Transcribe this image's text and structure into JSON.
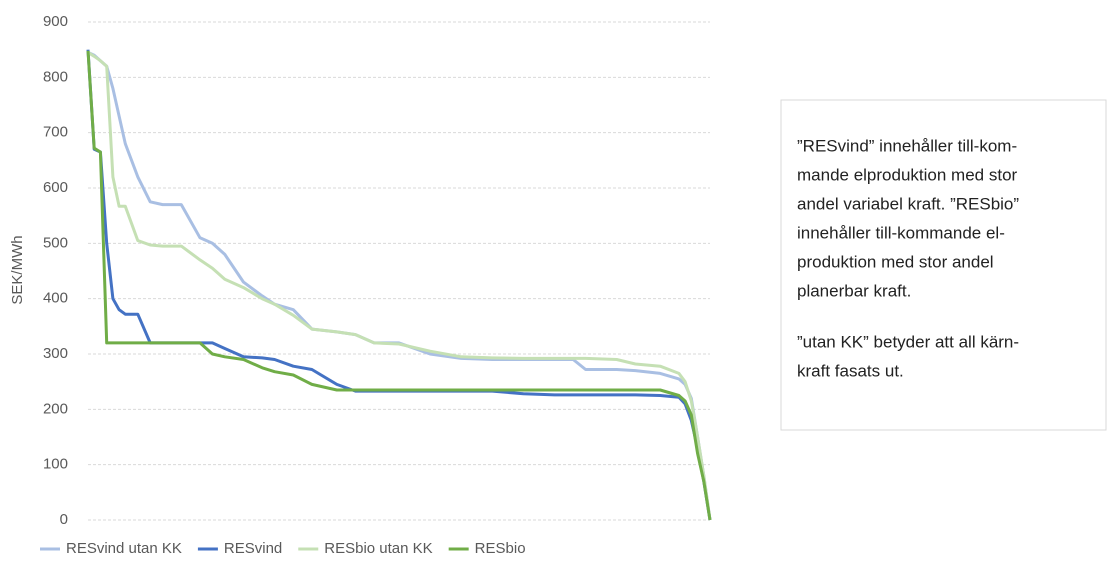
{
  "chart_data": {
    "type": "line",
    "y_label": "SEK/MWh",
    "x": [
      0,
      1,
      2,
      3,
      4,
      5,
      6,
      8,
      10,
      12,
      15,
      18,
      20,
      22,
      25,
      28,
      30,
      33,
      36,
      40,
      43,
      46,
      50,
      55,
      60,
      65,
      70,
      75,
      78,
      80,
      85,
      88,
      92,
      95,
      96,
      97,
      98,
      99,
      100
    ],
    "xlim": [
      0,
      100
    ],
    "ylim": [
      0,
      900
    ],
    "yticks": [
      0,
      100,
      200,
      300,
      400,
      500,
      600,
      700,
      800,
      900
    ],
    "grid": true,
    "legend": "bottom",
    "series": [
      {
        "name": "RESvind utan KK",
        "color": "#a9bfe3",
        "values": [
          845,
          840,
          830,
          820,
          780,
          730,
          680,
          620,
          575,
          570,
          570,
          510,
          500,
          480,
          430,
          405,
          390,
          380,
          345,
          340,
          335,
          320,
          320,
          300,
          292,
          290,
          290,
          290,
          290,
          272,
          272,
          270,
          265,
          255,
          245,
          220,
          150,
          80,
          0
        ]
      },
      {
        "name": "RESvind",
        "color": "#4472c4",
        "values": [
          850,
          670,
          665,
          500,
          400,
          380,
          372,
          372,
          320,
          320,
          320,
          320,
          320,
          310,
          295,
          293,
          290,
          278,
          272,
          245,
          233,
          233,
          233,
          233,
          233,
          233,
          228,
          226,
          226,
          226,
          226,
          226,
          225,
          222,
          210,
          180,
          130,
          70,
          0
        ]
      },
      {
        "name": "RESbio utan KK",
        "color": "#c5e0b4",
        "values": [
          845,
          838,
          830,
          820,
          620,
          567,
          567,
          505,
          497,
          495,
          495,
          470,
          455,
          435,
          420,
          400,
          390,
          370,
          345,
          340,
          335,
          320,
          318,
          305,
          295,
          293,
          292,
          292,
          292,
          292,
          290,
          282,
          278,
          265,
          250,
          215,
          150,
          80,
          0
        ]
      },
      {
        "name": "RESbio",
        "color": "#70ad47",
        "values": [
          848,
          672,
          665,
          320,
          320,
          320,
          320,
          320,
          320,
          320,
          320,
          320,
          300,
          295,
          290,
          275,
          268,
          262,
          245,
          235,
          235,
          235,
          235,
          235,
          235,
          235,
          235,
          235,
          235,
          235,
          235,
          235,
          235,
          225,
          215,
          190,
          120,
          70,
          0
        ]
      }
    ],
    "annotations": [
      [
        "”RESvind” innehåller till-kom-",
        "mande elproduktion med stor",
        "andel variabel kraft. ”RESbio”",
        "innehåller till-kommande el-",
        "produktion med stor andel",
        "planerbar kraft."
      ],
      [
        "”utan KK” betyder att all kärn-",
        "kraft fasats ut."
      ]
    ]
  }
}
